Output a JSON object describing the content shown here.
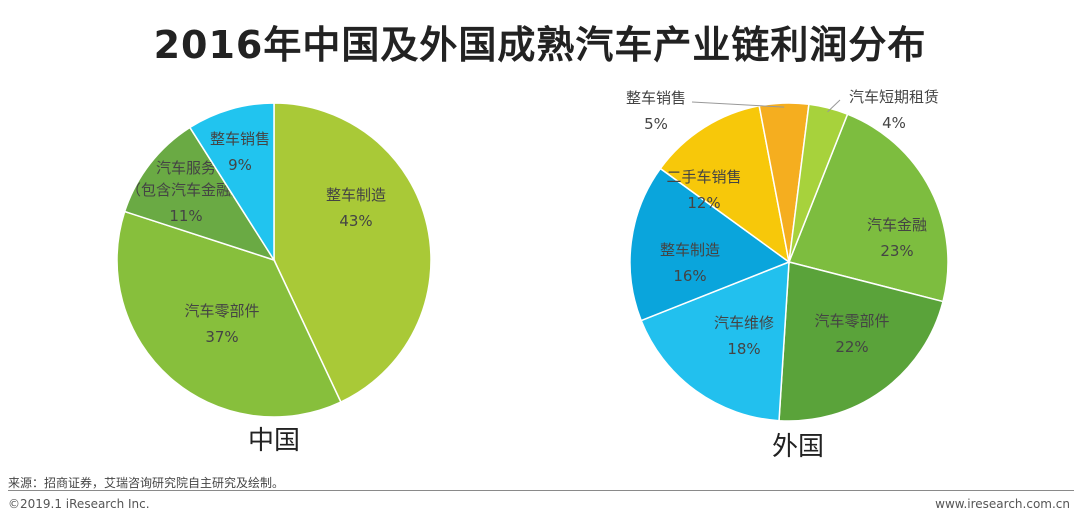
{
  "title": "2016年中国及外国成熟汽车产业链利润分布",
  "chart_data": [
    {
      "type": "pie",
      "caption": "中国",
      "slices": [
        {
          "label": "整车制造",
          "value": 43,
          "value_label": "43%",
          "color": "#a9c937"
        },
        {
          "label": "汽车零部件",
          "value": 37,
          "value_label": "37%",
          "color": "#87bf3c"
        },
        {
          "label": "汽车服务（包含汽车金融）",
          "label_lines": [
            "汽车服务",
            "（包含汽车金融）"
          ],
          "value": 11,
          "value_label": "11%",
          "color": "#6aaa44"
        },
        {
          "label": "整车销售",
          "value": 9,
          "value_label": "9%",
          "color": "#21c4ef"
        }
      ]
    },
    {
      "type": "pie",
      "caption": "外国",
      "slices": [
        {
          "label": "汽车金融",
          "value": 23,
          "value_label": "23%",
          "color": "#7dbd3f"
        },
        {
          "label": "汽车零部件",
          "value": 22,
          "value_label": "22%",
          "color": "#5aa33a"
        },
        {
          "label": "汽车维修",
          "value": 18,
          "value_label": "18%",
          "color": "#22c0ee"
        },
        {
          "label": "整车制造",
          "value": 16,
          "value_label": "16%",
          "color": "#0aa5dc"
        },
        {
          "label": "二手车销售",
          "value": 12,
          "value_label": "12%",
          "color": "#f7c80a"
        },
        {
          "label": "整车销售",
          "value": 5,
          "value_label": "5%",
          "color": "#f5ae1f"
        },
        {
          "label": "汽车短期租赁",
          "value": 4,
          "value_label": "4%",
          "color": "#a7d23c"
        }
      ]
    }
  ],
  "footer": {
    "source": "来源：招商证券，艾瑞咨询研究院自主研究及绘制。",
    "copyright": "©2019.1 iResearch Inc.",
    "website": "www.iresearch.com.cn"
  }
}
